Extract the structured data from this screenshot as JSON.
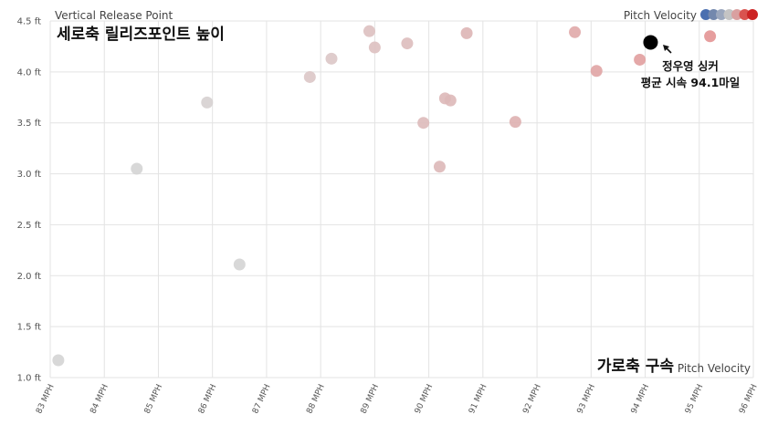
{
  "chart_data": {
    "type": "scatter",
    "ylabel": "Vertical Release Point",
    "ylabel_overlay": "세로축 릴리즈포인트 높이",
    "xlabel": "Pitch Velocity",
    "xlabel_overlay": "가로축 구속",
    "legend_title": "Pitch Velocity",
    "legend_colors": [
      "#4a6fb0",
      "#7388ad",
      "#9ba7bd",
      "#c4c4c4",
      "#d9a0a0",
      "#d9534f",
      "#cc2222"
    ],
    "legend_position": "top-right",
    "grid": true,
    "xlim": [
      83,
      96
    ],
    "ylim": [
      1.0,
      4.5
    ],
    "x_tick_labels": [
      "83 MPH",
      "84 MPH",
      "85 MPH",
      "86 MPH",
      "87 MPH",
      "88 MPH",
      "89 MPH",
      "90 MPH",
      "91 MPH",
      "92 MPH",
      "93 MPH",
      "94 MPH",
      "95 MPH",
      "96 MPH"
    ],
    "y_tick_labels": [
      "1.0 ft",
      "1.5 ft",
      "2.0 ft",
      "2.5 ft",
      "3.0 ft",
      "3.5 ft",
      "4.0 ft",
      "4.5 ft"
    ],
    "points": [
      {
        "x": 83.15,
        "y": 1.17,
        "color": "#d4d4d4"
      },
      {
        "x": 84.6,
        "y": 3.05,
        "color": "#d4d4d4"
      },
      {
        "x": 85.9,
        "y": 3.7,
        "color": "#d6d0d0"
      },
      {
        "x": 86.5,
        "y": 2.11,
        "color": "#d4d4d4"
      },
      {
        "x": 87.8,
        "y": 3.95,
        "color": "#dcc6c6"
      },
      {
        "x": 88.2,
        "y": 4.13,
        "color": "#dcc6c6"
      },
      {
        "x": 88.9,
        "y": 4.4,
        "color": "#ddc0c0"
      },
      {
        "x": 89.0,
        "y": 4.24,
        "color": "#ddc0c0"
      },
      {
        "x": 89.6,
        "y": 4.28,
        "color": "#ddbcbc"
      },
      {
        "x": 89.9,
        "y": 3.5,
        "color": "#ddbaba"
      },
      {
        "x": 90.2,
        "y": 3.07,
        "color": "#ddb8b8"
      },
      {
        "x": 90.3,
        "y": 3.74,
        "color": "#ddb8b8"
      },
      {
        "x": 90.4,
        "y": 3.72,
        "color": "#ddb8b8"
      },
      {
        "x": 90.7,
        "y": 4.38,
        "color": "#ddb5b5"
      },
      {
        "x": 91.6,
        "y": 3.51,
        "color": "#deb0b0"
      },
      {
        "x": 92.7,
        "y": 4.39,
        "color": "#e0a8a8"
      },
      {
        "x": 93.1,
        "y": 4.01,
        "color": "#e0a4a4"
      },
      {
        "x": 93.9,
        "y": 4.12,
        "color": "#e19e9e"
      },
      {
        "x": 95.2,
        "y": 4.35,
        "color": "#e39494"
      }
    ],
    "highlight": {
      "x": 94.1,
      "y": 4.29,
      "color": "#000000",
      "label_line1": "정우영 싱커",
      "label_line2": "평균 시속 94.1마일"
    }
  }
}
